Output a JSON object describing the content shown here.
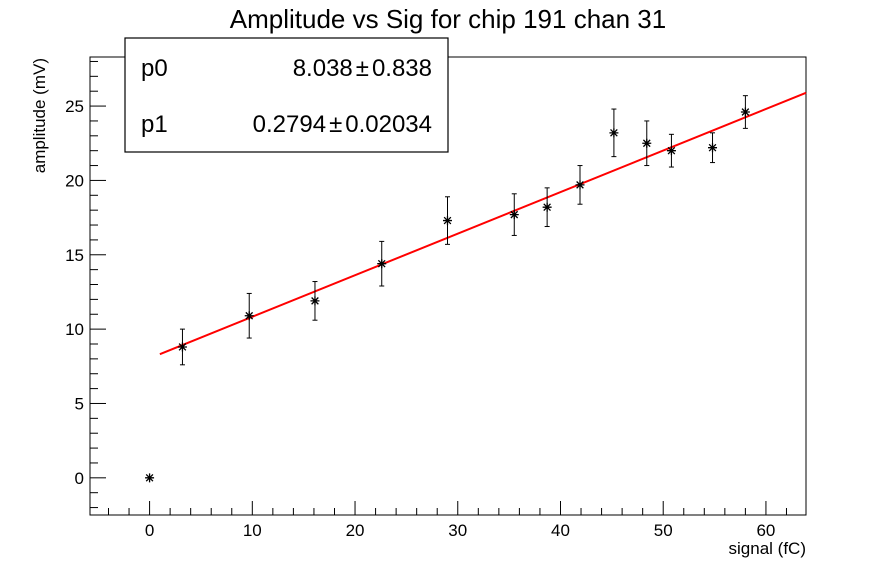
{
  "chart_data": {
    "type": "scatter",
    "title": "Amplitude vs Sig for chip 191 chan 31",
    "xlabel": "signal (fC)",
    "ylabel": "amplitude (mV)",
    "xlim": [
      -5.8,
      63.9
    ],
    "ylim": [
      -2.5,
      28.3
    ],
    "x_ticks": [
      0,
      10,
      20,
      30,
      40,
      50,
      60
    ],
    "y_ticks": [
      0,
      5,
      10,
      15,
      20,
      25
    ],
    "grid": false,
    "marker": "asterisk",
    "points": [
      {
        "x": 0.0,
        "y": 0.0,
        "err": 0
      },
      {
        "x": 3.2,
        "y": 8.8,
        "err": 1.2
      },
      {
        "x": 9.7,
        "y": 10.9,
        "err": 1.5
      },
      {
        "x": 16.1,
        "y": 11.9,
        "err": 1.3
      },
      {
        "x": 22.6,
        "y": 14.4,
        "err": 1.5
      },
      {
        "x": 29.0,
        "y": 17.3,
        "err": 1.6
      },
      {
        "x": 35.5,
        "y": 17.7,
        "err": 1.4
      },
      {
        "x": 38.7,
        "y": 18.2,
        "err": 1.3
      },
      {
        "x": 41.9,
        "y": 19.7,
        "err": 1.3
      },
      {
        "x": 45.2,
        "y": 23.2,
        "err": 1.6
      },
      {
        "x": 48.4,
        "y": 22.5,
        "err": 1.5
      },
      {
        "x": 50.8,
        "y": 22.0,
        "err": 1.1
      },
      {
        "x": 54.8,
        "y": 22.2,
        "err": 1.0
      },
      {
        "x": 58.0,
        "y": 24.6,
        "err": 1.1
      }
    ],
    "fit": {
      "p0": 8.038,
      "p1": 0.2794,
      "x_range": [
        1.0,
        63.9
      ],
      "color": "#ff0000"
    },
    "stats_box": {
      "placement": "top-left",
      "rows": [
        {
          "name": "p0",
          "value": "8.038",
          "pm": "±",
          "error": "0.838"
        },
        {
          "name": "p1",
          "value": "0.2794",
          "pm": "±",
          "error": "0.02034"
        }
      ]
    },
    "colors": {
      "points": "#000000",
      "fit": "#ff0000",
      "axes": "#000000"
    }
  }
}
